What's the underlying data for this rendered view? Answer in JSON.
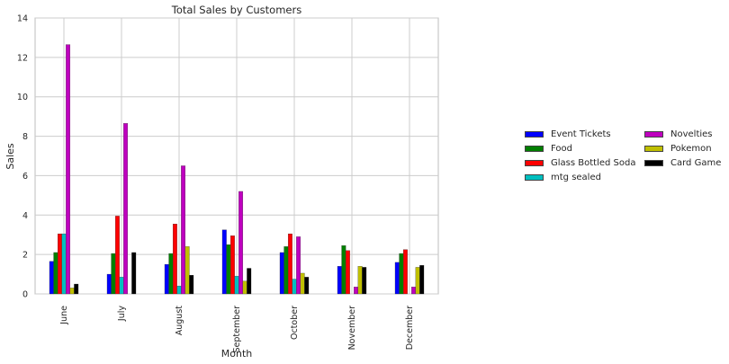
{
  "chart_data": {
    "type": "bar",
    "title": "Total Sales by Customers",
    "xlabel": "Month",
    "ylabel": "Sales",
    "ylim": [
      0,
      14
    ],
    "yticks": [
      "0",
      "2",
      "4",
      "6",
      "8",
      "10",
      "12",
      "14"
    ],
    "grid": true,
    "legend_position": "right",
    "categories": [
      "June",
      "July",
      "August",
      "September",
      "October",
      "November",
      "December"
    ],
    "series": [
      {
        "name": "Event Tickets",
        "color": "#0000ff",
        "values": [
          1.65,
          1.0,
          1.5,
          3.25,
          2.1,
          1.4,
          1.6
        ]
      },
      {
        "name": "Food",
        "color": "#007f00",
        "values": [
          2.1,
          2.05,
          2.05,
          2.5,
          2.4,
          2.45,
          2.05
        ]
      },
      {
        "name": "Glass Bottled Soda",
        "color": "#ff0000",
        "values": [
          3.05,
          3.95,
          3.55,
          2.95,
          3.05,
          2.2,
          2.25
        ]
      },
      {
        "name": "mtg sealed",
        "color": "#00bfbf",
        "values": [
          3.05,
          0.85,
          0.4,
          0.9,
          0.75,
          0,
          0
        ]
      },
      {
        "name": "Novelties",
        "color": "#bf00bf",
        "values": [
          12.65,
          8.65,
          6.5,
          5.2,
          2.9,
          0.35,
          0.35
        ]
      },
      {
        "name": "Pokemon",
        "color": "#bfbf00",
        "values": [
          0.3,
          0,
          2.4,
          0.65,
          1.05,
          1.4,
          1.35
        ]
      },
      {
        "name": "Card Game",
        "color": "#000000",
        "values": [
          0.5,
          2.1,
          0.95,
          1.3,
          0.85,
          1.35,
          1.45
        ]
      }
    ]
  }
}
